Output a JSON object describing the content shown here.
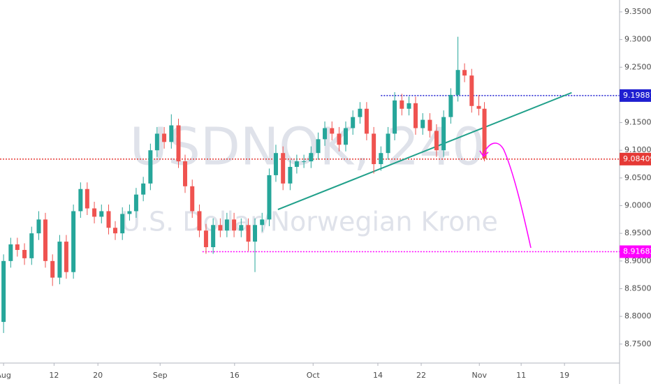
{
  "chart_data": {
    "type": "candlestick",
    "watermark": "USDNOK, 240",
    "watermark_subtitle": "U.S. Dollar/Norwegian Krone",
    "up_color": "#26a69a",
    "down_color": "#ef5350",
    "x": [
      213.0,
      214.4,
      215.7,
      217.1,
      218.5,
      219.9,
      221.2,
      222.6,
      224.0,
      225.3,
      226.7,
      228.1,
      229.4,
      230.8,
      232.2,
      233.6,
      234.9,
      236.3,
      237.7,
      239.0,
      240.4,
      241.8,
      243.1,
      244.5,
      245.9,
      247.3,
      248.6,
      250.0,
      251.4,
      252.7,
      254.1,
      255.5,
      256.8,
      258.2,
      259.6,
      261.0,
      262.3,
      263.7,
      265.1,
      266.4,
      267.8,
      269.2,
      270.5,
      271.9,
      273.3,
      274.7,
      276.0,
      277.4,
      278.8,
      280.1,
      281.5,
      282.9,
      284.2,
      285.6,
      287.0,
      288.4,
      289.7,
      291.1,
      292.5,
      293.8,
      295.2,
      296.6,
      297.9,
      299.3,
      300.7,
      302.1,
      303.4,
      304.8,
      306.2,
      307.3
    ],
    "open": [
      8.79,
      8.9,
      8.93,
      8.92,
      8.905,
      8.95,
      8.975,
      8.9,
      8.87,
      8.935,
      8.88,
      8.99,
      9.03,
      8.995,
      8.98,
      8.99,
      8.96,
      8.95,
      8.985,
      8.99,
      9.02,
      9.04,
      9.1,
      9.13,
      9.115,
      9.145,
      9.08,
      9.035,
      8.99,
      8.955,
      8.925,
      8.965,
      8.955,
      8.975,
      8.955,
      8.965,
      8.935,
      8.965,
      8.975,
      9.055,
      9.095,
      9.04,
      9.07,
      9.08,
      9.08,
      9.095,
      9.12,
      9.14,
      9.13,
      9.11,
      9.14,
      9.16,
      9.175,
      9.13,
      9.075,
      9.095,
      9.13,
      9.19,
      9.175,
      9.185,
      9.14,
      9.155,
      9.135,
      9.1,
      9.16,
      9.2,
      9.245,
      9.235,
      9.18,
      9.175
    ],
    "high": [
      8.912,
      8.942,
      8.942,
      8.932,
      8.962,
      8.99,
      8.987,
      8.912,
      8.947,
      8.947,
      9.002,
      9.042,
      9.042,
      9.007,
      9.002,
      9.002,
      8.972,
      8.997,
      9.002,
      9.032,
      9.052,
      9.112,
      9.142,
      9.142,
      9.165,
      9.157,
      9.092,
      9.047,
      9.002,
      8.967,
      8.977,
      8.977,
      8.987,
      8.987,
      8.977,
      8.977,
      8.977,
      8.987,
      9.067,
      9.11,
      9.107,
      9.082,
      9.092,
      9.092,
      9.107,
      9.132,
      9.152,
      9.152,
      9.142,
      9.152,
      9.172,
      9.187,
      9.187,
      9.142,
      9.107,
      9.142,
      9.205,
      9.202,
      9.197,
      9.197,
      9.167,
      9.167,
      9.147,
      9.172,
      9.212,
      9.305,
      9.257,
      9.247,
      9.2,
      9.187
    ],
    "low": [
      8.77,
      8.888,
      8.908,
      8.893,
      8.893,
      8.938,
      8.888,
      8.855,
      8.858,
      8.868,
      8.868,
      8.978,
      8.983,
      8.968,
      8.968,
      8.948,
      8.938,
      8.938,
      8.973,
      8.978,
      9.008,
      9.028,
      9.088,
      9.103,
      9.103,
      9.068,
      9.023,
      8.978,
      8.943,
      8.913,
      8.913,
      8.943,
      8.943,
      8.943,
      8.943,
      8.918,
      8.88,
      8.953,
      8.963,
      9.043,
      9.028,
      9.028,
      9.058,
      9.068,
      9.068,
      9.083,
      9.108,
      9.118,
      9.098,
      9.098,
      9.128,
      9.148,
      9.118,
      9.058,
      9.063,
      9.083,
      9.118,
      9.163,
      9.163,
      9.128,
      9.128,
      9.123,
      9.088,
      9.088,
      9.148,
      9.188,
      9.223,
      9.168,
      9.163,
      9.08
    ],
    "close": [
      8.9,
      8.93,
      8.92,
      8.905,
      8.95,
      8.975,
      8.9,
      8.87,
      8.935,
      8.88,
      8.99,
      9.03,
      8.995,
      8.98,
      8.99,
      8.96,
      8.95,
      8.985,
      8.99,
      9.02,
      9.04,
      9.1,
      9.13,
      9.115,
      9.145,
      9.08,
      9.035,
      8.99,
      8.955,
      8.925,
      8.965,
      8.955,
      8.975,
      8.955,
      8.965,
      8.935,
      8.965,
      8.975,
      9.055,
      9.095,
      9.04,
      9.07,
      9.08,
      9.08,
      9.095,
      9.12,
      9.14,
      9.13,
      9.11,
      9.14,
      9.16,
      9.175,
      9.13,
      9.075,
      9.095,
      9.13,
      9.19,
      9.175,
      9.185,
      9.14,
      9.155,
      9.135,
      9.1,
      9.16,
      9.2,
      9.245,
      9.235,
      9.18,
      9.175,
      9.085
    ],
    "xlim": [
      212.3,
      333.8
    ],
    "xticks": [
      {
        "value": 213,
        "label": "Aug"
      },
      {
        "value": 222.9,
        "label": "12"
      },
      {
        "value": 231.5,
        "label": "20"
      },
      {
        "value": 243.7,
        "label": "Sep"
      },
      {
        "value": 258.3,
        "label": "16"
      },
      {
        "value": 273.7,
        "label": "Oct"
      },
      {
        "value": 286.4,
        "label": "14"
      },
      {
        "value": 294.9,
        "label": "22"
      },
      {
        "value": 306.3,
        "label": "Nov"
      },
      {
        "value": 314.5,
        "label": "11"
      },
      {
        "value": 323,
        "label": "19"
      }
    ],
    "ylim": [
      8.7157,
      9.3714
    ],
    "yticks": [
      {
        "value": 8.75,
        "label": "8.75000"
      },
      {
        "value": 8.8,
        "label": "8.80000"
      },
      {
        "value": 8.85,
        "label": "8.85000"
      },
      {
        "value": 8.9,
        "label": "8.90000"
      },
      {
        "value": 8.95,
        "label": "8.95000"
      },
      {
        "value": 9.0,
        "label": "9.00000"
      },
      {
        "value": 9.05,
        "label": "9.05000"
      },
      {
        "value": 9.1,
        "label": "9.10000"
      },
      {
        "value": 9.15,
        "label": "9.15000"
      },
      {
        "value": 9.2,
        "label": "9.20000"
      },
      {
        "value": 9.25,
        "label": "9.25000"
      },
      {
        "value": 9.3,
        "label": "9.30000"
      },
      {
        "value": 9.35,
        "label": "9.35000"
      }
    ],
    "grid": false,
    "levels": [
      {
        "value": 9.19881,
        "color": "#1f1fd1",
        "x_start": 287.0
      },
      {
        "value": 9.08409,
        "color": "#e53935",
        "x_start": 212.3
      },
      {
        "value": 8.91682,
        "color": "#ff00ff",
        "x_start": 252.0
      }
    ],
    "trendline": {
      "x": [
        266.8,
        324.4
      ],
      "y": [
        8.993,
        9.204
      ],
      "color": "#20a08a"
    }
  }
}
